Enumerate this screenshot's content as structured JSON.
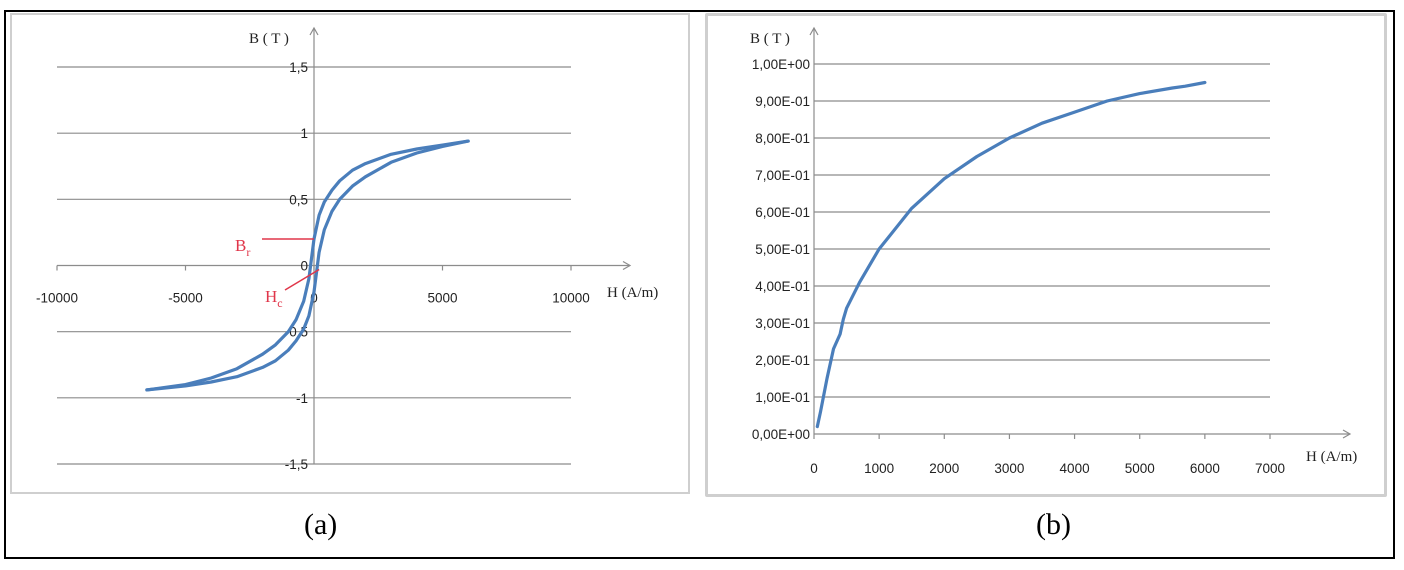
{
  "captions": {
    "a": "(a)",
    "b": "(b)"
  },
  "colors": {
    "series": "#4a7ebb",
    "annotation": "#e0364a",
    "grid": "#8c8c8c"
  },
  "chart_data": [
    {
      "panel": "a",
      "type": "line",
      "ylabel": "B ( T )",
      "xlabel": "H (A/m)",
      "xlim": [
        -10000,
        10000
      ],
      "ylim": [
        -1.5,
        1.5
      ],
      "x_ticks": [
        "-10000",
        "-5000",
        "0",
        "5000",
        "10000"
      ],
      "y_ticks": [
        "1,5",
        "1",
        "0,5",
        "0",
        "-0,5",
        "-1",
        "-1,5"
      ],
      "x_tick_values": [
        -10000,
        -5000,
        0,
        5000,
        10000
      ],
      "y_tick_values": [
        1.5,
        1,
        0.5,
        0,
        -0.5,
        -1,
        -1.5
      ],
      "grid": "horizontal",
      "annotations": [
        {
          "text": "B",
          "sub": "r",
          "x": 0,
          "y": 0.2
        },
        {
          "text": "H",
          "sub": "c",
          "x": 200,
          "y": 0
        }
      ],
      "series": [
        {
          "x": [
            -6500,
            -5000,
            -4000,
            -3000,
            -2000,
            -1500,
            -1000,
            -700,
            -400,
            -200,
            0,
            200,
            400,
            700,
            1000,
            1500,
            2000,
            3000,
            4000,
            5000,
            6000
          ],
          "y": [
            -0.94,
            -0.9,
            -0.85,
            -0.78,
            -0.67,
            -0.6,
            -0.5,
            -0.41,
            -0.27,
            -0.1,
            0.2,
            0.38,
            0.48,
            0.57,
            0.64,
            0.72,
            0.77,
            0.84,
            0.88,
            0.91,
            0.94
          ]
        },
        {
          "x": [
            -6500,
            -5000,
            -4000,
            -3000,
            -2000,
            -1500,
            -1000,
            -700,
            -400,
            -200,
            0,
            200,
            400,
            700,
            1000,
            1500,
            2000,
            3000,
            4000,
            5000,
            6000
          ],
          "y": [
            -0.94,
            -0.91,
            -0.88,
            -0.84,
            -0.77,
            -0.72,
            -0.64,
            -0.57,
            -0.48,
            -0.38,
            -0.2,
            0.1,
            0.27,
            0.41,
            0.5,
            0.6,
            0.67,
            0.78,
            0.85,
            0.9,
            0.94
          ]
        }
      ]
    },
    {
      "panel": "b",
      "type": "line",
      "ylabel": "B ( T )",
      "xlabel": "H (A/m)",
      "xlim": [
        0,
        7000
      ],
      "ylim": [
        0,
        1
      ],
      "x_ticks": [
        "0",
        "1000",
        "2000",
        "3000",
        "4000",
        "5000",
        "6000",
        "7000"
      ],
      "y_ticks": [
        "1,00E+00",
        "9,00E-01",
        "8,00E-01",
        "7,00E-01",
        "6,00E-01",
        "5,00E-01",
        "4,00E-01",
        "3,00E-01",
        "2,00E-01",
        "1,00E-01",
        "0,00E+00"
      ],
      "x_tick_values": [
        0,
        1000,
        2000,
        3000,
        4000,
        5000,
        6000,
        7000
      ],
      "y_tick_values": [
        1,
        0.9,
        0.8,
        0.7,
        0.6,
        0.5,
        0.4,
        0.3,
        0.2,
        0.1,
        0
      ],
      "grid": "horizontal",
      "series": [
        {
          "x": [
            50,
            100,
            200,
            300,
            400,
            450,
            500,
            700,
            1000,
            1500,
            2000,
            2500,
            3000,
            3500,
            4000,
            4500,
            5000,
            5500,
            5700,
            6000
          ],
          "y": [
            0.02,
            0.06,
            0.15,
            0.23,
            0.27,
            0.31,
            0.34,
            0.41,
            0.5,
            0.61,
            0.69,
            0.75,
            0.8,
            0.84,
            0.87,
            0.9,
            0.92,
            0.935,
            0.94,
            0.95
          ]
        }
      ]
    }
  ]
}
